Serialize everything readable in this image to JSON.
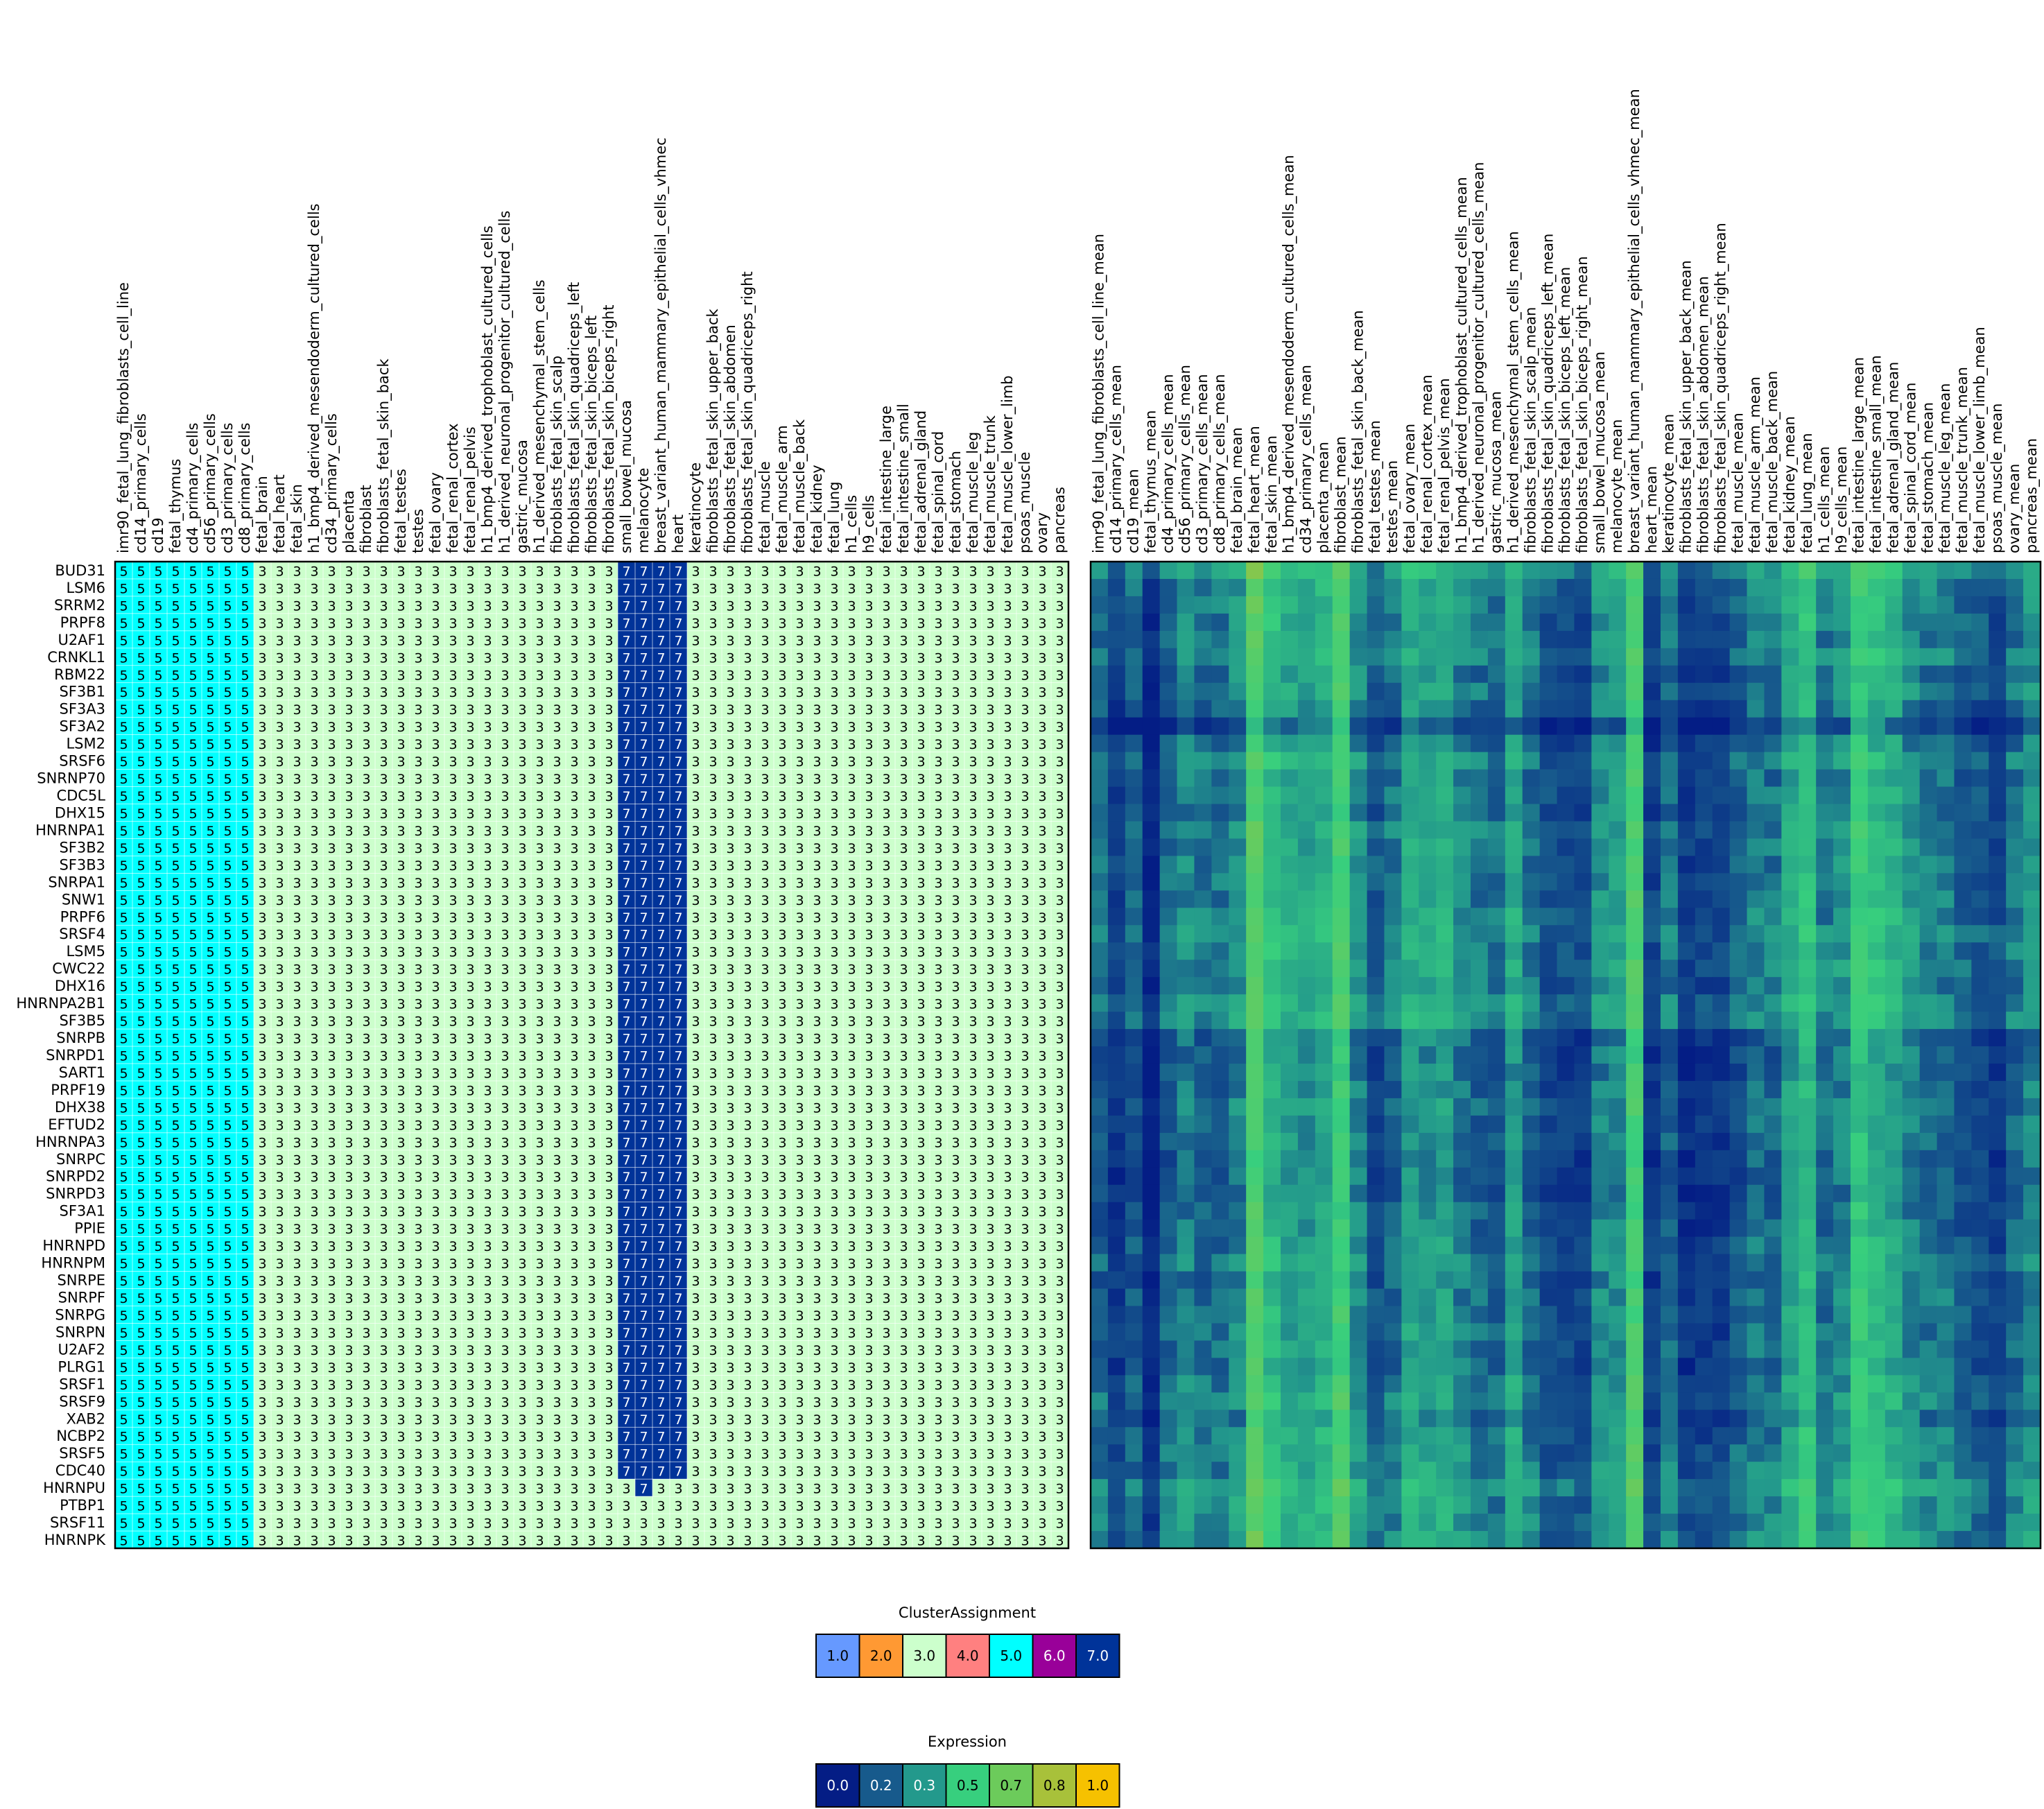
{
  "chart_data": {
    "type": "heatmap",
    "title": "",
    "genes": [
      "BUD31",
      "LSM6",
      "SRRM2",
      "PRPF8",
      "U2AF1",
      "CRNKL1",
      "RBM22",
      "SF3B1",
      "SF3A3",
      "SF3A2",
      "LSM2",
      "SRSF6",
      "SNRNP70",
      "CDC5L",
      "DHX15",
      "HNRNPA1",
      "SF3B2",
      "SF3B3",
      "SNRPA1",
      "SNW1",
      "PRPF6",
      "SRSF4",
      "LSM5",
      "CWC22",
      "DHX16",
      "HNRNPA2B1",
      "SF3B5",
      "SNRPB",
      "SNRPD1",
      "SART1",
      "PRPF19",
      "DHX38",
      "EFTUD2",
      "HNRNPA3",
      "SNRPC",
      "SNRPD2",
      "SNRPD3",
      "SF3A1",
      "PPIE",
      "HNRNPD",
      "HNRNPM",
      "SNRPE",
      "SNRPF",
      "SNRPG",
      "SNRPN",
      "U2AF2",
      "PLRG1",
      "SRSF1",
      "SRSF9",
      "XAB2",
      "NCBP2",
      "SRSF5",
      "CDC40",
      "HNRNPU",
      "PTBP1",
      "SRSF11",
      "HNRNPK"
    ],
    "samples": [
      "imr90_fetal_lung_fibroblasts_cell_line",
      "cd14_primary_cells",
      "cd19",
      "fetal_thymus",
      "cd4_primary_cells",
      "cd56_primary_cells",
      "cd3_primary_cells",
      "cd8_primary_cells",
      "fetal_brain",
      "fetal_heart",
      "fetal_skin",
      "h1_bmp4_derived_mesendoderm_cultured_cells",
      "cd34_primary_cells",
      "placenta",
      "fibroblast",
      "fibroblasts_fetal_skin_back",
      "fetal_testes",
      "testes",
      "fetal_ovary",
      "fetal_renal_cortex",
      "fetal_renal_pelvis",
      "h1_bmp4_derived_trophoblast_cultured_cells",
      "h1_derived_neuronal_progenitor_cultured_cells",
      "gastric_mucosa",
      "h1_derived_mesenchymal_stem_cells",
      "fibroblasts_fetal_skin_scalp",
      "fibroblasts_fetal_skin_quadriceps_left",
      "fibroblasts_fetal_skin_biceps_left",
      "fibroblasts_fetal_skin_biceps_right",
      "small_bowel_mucosa",
      "melanocyte",
      "breast_variant_human_mammary_epithelial_cells_vhmec",
      "heart",
      "keratinocyte",
      "fibroblasts_fetal_skin_upper_back",
      "fibroblasts_fetal_skin_abdomen",
      "fibroblasts_fetal_skin_quadriceps_right",
      "fetal_muscle",
      "fetal_muscle_arm",
      "fetal_muscle_back",
      "fetal_kidney",
      "fetal_lung",
      "h1_cells",
      "h9_cells",
      "fetal_intestine_large",
      "fetal_intestine_small",
      "fetal_adrenal_gland",
      "fetal_spinal_cord",
      "fetal_stomach",
      "fetal_muscle_leg",
      "fetal_muscle_trunk",
      "fetal_muscle_lower_limb",
      "psoas_muscle",
      "ovary",
      "pancreas"
    ],
    "mean_samples": [
      "imr90_fetal_lung_fibroblasts_cell_line_mean",
      "cd14_primary_cells_mean",
      "cd19_mean",
      "fetal_thymus_mean",
      "cd4_primary_cells_mean",
      "cd56_primary_cells_mean",
      "cd3_primary_cells_mean",
      "cd8_primary_cells_mean",
      "fetal_brain_mean",
      "fetal_heart_mean",
      "fetal_skin_mean",
      "h1_bmp4_derived_mesendoderm_cultured_cells_mean",
      "cd34_primary_cells_mean",
      "placenta_mean",
      "fibroblast_mean",
      "fibroblasts_fetal_skin_back_mean",
      "fetal_testes_mean",
      "testes_mean",
      "fetal_ovary_mean",
      "fetal_renal_cortex_mean",
      "fetal_renal_pelvis_mean",
      "h1_bmp4_derived_trophoblast_cultured_cells_mean",
      "h1_derived_neuronal_progenitor_cultured_cells_mean",
      "gastric_mucosa_mean",
      "h1_derived_mesenchymal_stem_cells_mean",
      "fibroblasts_fetal_skin_scalp_mean",
      "fibroblasts_fetal_skin_quadriceps_left_mean",
      "fibroblasts_fetal_skin_biceps_left_mean",
      "fibroblasts_fetal_skin_biceps_right_mean",
      "small_bowel_mucosa_mean",
      "melanocyte_mean",
      "breast_variant_human_mammary_epithelial_cells_vhmec_mean",
      "heart_mean",
      "keratinocyte_mean",
      "fibroblasts_fetal_skin_upper_back_mean",
      "fibroblasts_fetal_skin_abdomen_mean",
      "fibroblasts_fetal_skin_quadriceps_right_mean",
      "fetal_muscle_mean",
      "fetal_muscle_arm_mean",
      "fetal_muscle_back_mean",
      "fetal_kidney_mean",
      "fetal_lung_mean",
      "h1_cells_mean",
      "h9_cells_mean",
      "fetal_intestine_large_mean",
      "fetal_intestine_small_mean",
      "fetal_adrenal_gland_mean",
      "fetal_spinal_cord_mean",
      "fetal_stomach_mean",
      "fetal_muscle_leg_mean",
      "fetal_muscle_trunk_mean",
      "fetal_muscle_lower_limb_mean",
      "psoas_muscle_mean",
      "ovary_mean",
      "pancreas_mean"
    ],
    "cluster_grid": {
      "default_cluster": 3,
      "rules": [
        {
          "cluster": 5,
          "columns": [
            0,
            7
          ],
          "rows": "all"
        },
        {
          "cluster": 7,
          "columns": [
            29,
            32
          ],
          "rows": [
            0,
            52
          ]
        },
        {
          "cluster": 7,
          "columns": [
            30,
            30
          ],
          "rows": [
            53,
            53
          ]
        }
      ]
    },
    "expression_profile": {
      "column_levels": [
        0.22,
        0.12,
        0.2,
        0.04,
        0.22,
        0.28,
        0.24,
        0.24,
        0.3,
        0.62,
        0.44,
        0.36,
        0.34,
        0.4,
        0.56,
        0.3,
        0.18,
        0.24,
        0.36,
        0.34,
        0.36,
        0.28,
        0.24,
        0.22,
        0.36,
        0.24,
        0.16,
        0.16,
        0.14,
        0.3,
        0.32,
        0.58,
        0.12,
        0.24,
        0.1,
        0.12,
        0.12,
        0.2,
        0.26,
        0.24,
        0.36,
        0.46,
        0.24,
        0.3,
        0.5,
        0.42,
        0.38,
        0.3,
        0.26,
        0.26,
        0.2,
        0.18,
        0.14,
        0.24,
        0.3
      ],
      "row_offsets": [
        0.08,
        0.02,
        0.02,
        0.0,
        0.0,
        0.02,
        -0.02,
        0.0,
        -0.04,
        -0.14,
        -0.04,
        0.02,
        -0.02,
        0.0,
        -0.02,
        0.02,
        0.0,
        0.0,
        0.0,
        0.0,
        0.02,
        0.04,
        0.02,
        0.02,
        0.0,
        0.04,
        0.04,
        -0.06,
        -0.06,
        -0.06,
        -0.04,
        -0.02,
        -0.04,
        -0.04,
        -0.06,
        -0.06,
        -0.06,
        -0.04,
        -0.04,
        -0.02,
        0.0,
        -0.04,
        -0.02,
        -0.02,
        -0.02,
        -0.02,
        -0.04,
        0.0,
        0.02,
        -0.04,
        0.0,
        0.02,
        0.02,
        0.08,
        0.04,
        0.04,
        0.04
      ]
    },
    "legends": [
      {
        "title": "ClusterAssignment",
        "values": [
          "1.0",
          "2.0",
          "3.0",
          "4.0",
          "5.0",
          "6.0",
          "7.0"
        ],
        "colors": [
          "#6699ff",
          "#ff9933",
          "#ccffcc",
          "#ff8080",
          "#00ffff",
          "#990099",
          "#003399"
        ]
      },
      {
        "title": "Expression",
        "values": [
          "0.0",
          "0.2",
          "0.3",
          "0.5",
          "0.7",
          "0.8",
          "1.0"
        ],
        "colors": [
          "#041d85",
          "#175a8c",
          "#23998c",
          "#37cf7e",
          "#6ccb5b",
          "#a8c13a",
          "#f6c100"
        ]
      }
    ]
  }
}
